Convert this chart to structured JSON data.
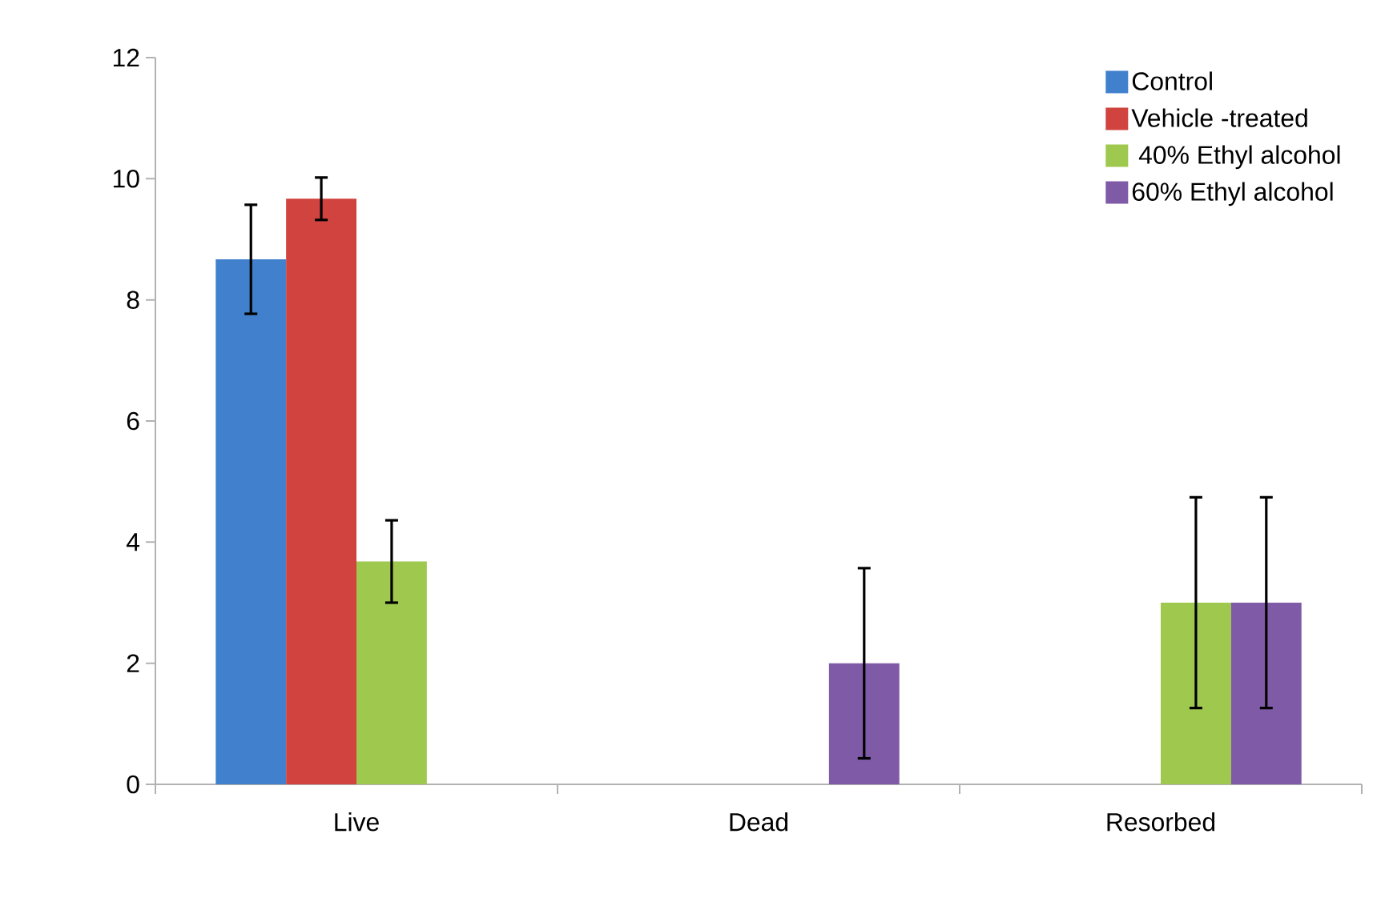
{
  "chart_data": {
    "type": "bar",
    "categories": [
      "Live",
      "Dead",
      "Resorbed"
    ],
    "series": [
      {
        "name": "Control",
        "color": "#4080cc",
        "values": [
          8.67,
          0,
          0
        ],
        "errors": [
          0.9,
          null,
          null
        ]
      },
      {
        "name": "Vehicle -treated",
        "color": "#d0433e",
        "values": [
          9.67,
          0,
          0
        ],
        "errors": [
          0.35,
          null,
          null
        ]
      },
      {
        "name": " 40% Ethyl alcohol",
        "color": "#9fc84e",
        "values": [
          3.68,
          0,
          3.0
        ],
        "errors": [
          0.68,
          null,
          1.74
        ]
      },
      {
        "name": "60% Ethyl alcohol",
        "color": "#7f5aa6",
        "values": [
          0,
          2.0,
          3.0
        ],
        "errors": [
          null,
          1.57,
          1.74
        ]
      }
    ],
    "ylim": [
      0,
      12
    ],
    "yticks": [
      0,
      2,
      4,
      6,
      8,
      10,
      12
    ],
    "grid": false,
    "legend": "top right"
  }
}
